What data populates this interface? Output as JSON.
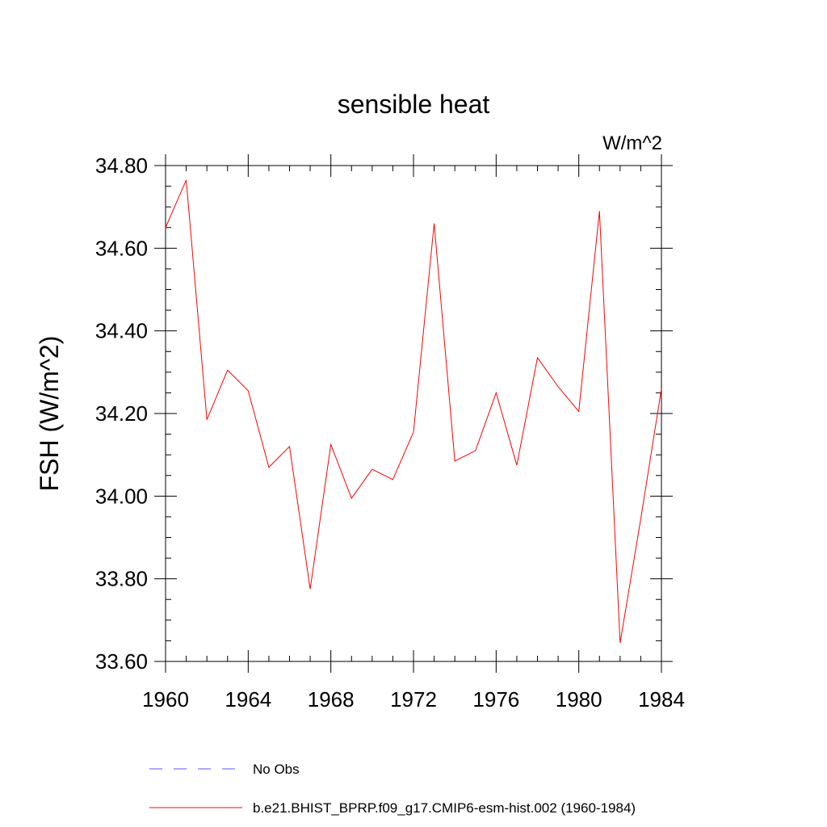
{
  "chart_data": {
    "type": "line",
    "title": "sensible heat",
    "units_label": "W/m^2",
    "ylabel": "FSH  (W/m^2)",
    "xlabel": "",
    "xlim": [
      1960,
      1984
    ],
    "ylim": [
      33.6,
      34.8
    ],
    "x_ticks": [
      1960,
      1964,
      1968,
      1972,
      1976,
      1980,
      1984
    ],
    "x_tick_labels": [
      "1960",
      "1964",
      "1968",
      "1972",
      "1976",
      "1980",
      "1984"
    ],
    "y_ticks": [
      33.6,
      33.8,
      34.0,
      34.2,
      34.4,
      34.6,
      34.8
    ],
    "y_tick_labels": [
      "33.60",
      "33.80",
      "34.00",
      "34.20",
      "34.40",
      "34.60",
      "34.80"
    ],
    "x": [
      1960,
      1961,
      1962,
      1963,
      1964,
      1965,
      1966,
      1967,
      1968,
      1969,
      1970,
      1971,
      1972,
      1973,
      1974,
      1975,
      1976,
      1977,
      1978,
      1979,
      1980,
      1981,
      1982,
      1983,
      1984
    ],
    "series": [
      {
        "name": "b.e21.BHIST_BPRP.f09_g17.CMIP6-esm-hist.002 (1960-1984)",
        "color": "#ff0000",
        "values": [
          34.65,
          34.765,
          34.185,
          34.305,
          34.255,
          34.07,
          34.12,
          33.775,
          34.125,
          33.995,
          34.065,
          34.04,
          34.155,
          34.66,
          34.085,
          34.11,
          34.25,
          34.075,
          34.335,
          34.265,
          34.205,
          34.69,
          33.645,
          33.945,
          34.26
        ]
      }
    ],
    "legend": [
      {
        "label": "No Obs",
        "color": "#5555ff",
        "style": "dashed"
      },
      {
        "label": "b.e21.BHIST_BPRP.f09_g17.CMIP6-esm-hist.002 (1960-1984)",
        "color": "#ff0000",
        "style": "solid"
      }
    ]
  }
}
